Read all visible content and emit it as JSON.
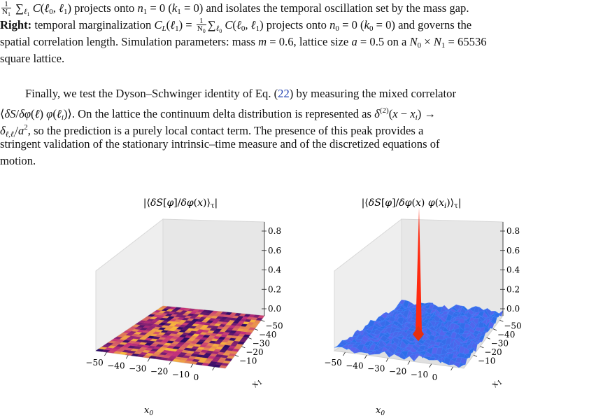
{
  "caption": {
    "line1_mid": "projects onto",
    "line1_mid2": "and isolates the temporal oscillation set by the mass gap.",
    "right_label": "Right:",
    "line2_a": "temporal marginalization",
    "line2_b": "projects onto",
    "line2_c": "and governs the",
    "line3": "spatial correlation length. Simulation parameters: mass",
    "line3_b": ", lattice size",
    "line3_c": "on a",
    "line3_d": "= 65536",
    "line4": "square lattice."
  },
  "paragraph": {
    "line1_a": "Finally, we test the Dyson–Schwinger identity of Eq. (",
    "eq_ref": "22",
    "line1_b": ") by measuring the mixed correlator",
    "line2_a": ". On the lattice the continuum delta distribution is represented as",
    "line3_b": ", so the prediction is a purely local contact term.  The presence of this peak provides a",
    "line4": "stringent validation of the stationary intrinsic–time measure and of the discretized equations of",
    "line5": "motion."
  },
  "figures": {
    "left_title": "|⟨δS[φ]/δφ(x)⟩τ|",
    "right_title": "|⟨δS[φ]/δφ(x) φ(xᵢ)⟩τ|",
    "z_ticks": [
      "0.8",
      "0.6",
      "0.4",
      "0.2",
      "0.0"
    ],
    "x0_ticks": [
      "−50",
      "−40",
      "−30",
      "−20",
      "−10",
      "0"
    ],
    "x1_ticks": [
      "−10",
      "−20",
      "−30",
      "−40",
      "−50"
    ],
    "x0_label": "x₀",
    "x1_label": "x₁",
    "colors": {
      "heat_low": "#2a0a66",
      "heat_mid": "#c4307a",
      "heat_high": "#f9b93a",
      "surf": "#3f7df0",
      "peak": "#ff2a10"
    }
  }
}
